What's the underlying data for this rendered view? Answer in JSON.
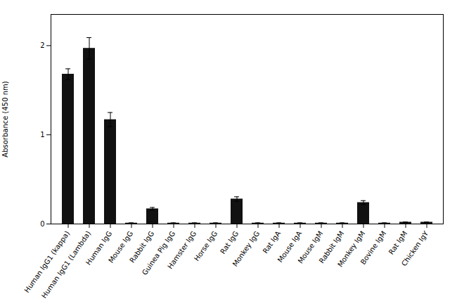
{
  "chart_data": {
    "type": "bar",
    "categories": [
      "Human IgG1 (kappa)",
      "Human IgG1 (Lambda)",
      "Human IgG",
      "Mouse IgG",
      "Rabbit IgG",
      "Guinea Pig IgG",
      "Hamster IgG",
      "Horse IgG",
      "Rat IgG",
      "Monkey IgG",
      "Rat IgA",
      "Mouse IgA",
      "Mouse IgM",
      "Rabbit IgM",
      "Monkey IgM",
      "Bovine IgM",
      "Rat IgM",
      "Chicken IgY"
    ],
    "values": [
      1.68,
      1.97,
      1.17,
      0.01,
      0.17,
      0.01,
      0.01,
      0.01,
      0.28,
      0.01,
      0.01,
      0.01,
      0.01,
      0.01,
      0.24,
      0.01,
      0.02,
      0.02
    ],
    "errors": [
      0.06,
      0.12,
      0.08,
      0.003,
      0.015,
      0.003,
      0.003,
      0.003,
      0.025,
      0.003,
      0.003,
      0.003,
      0.003,
      0.003,
      0.022,
      0.003,
      0.003,
      0.003
    ],
    "color": "#111111",
    "ylabel": "Absorbance (450 nm)",
    "ylim": [
      0,
      2.35
    ],
    "yticks": [
      0,
      1,
      2
    ],
    "grid": false
  }
}
